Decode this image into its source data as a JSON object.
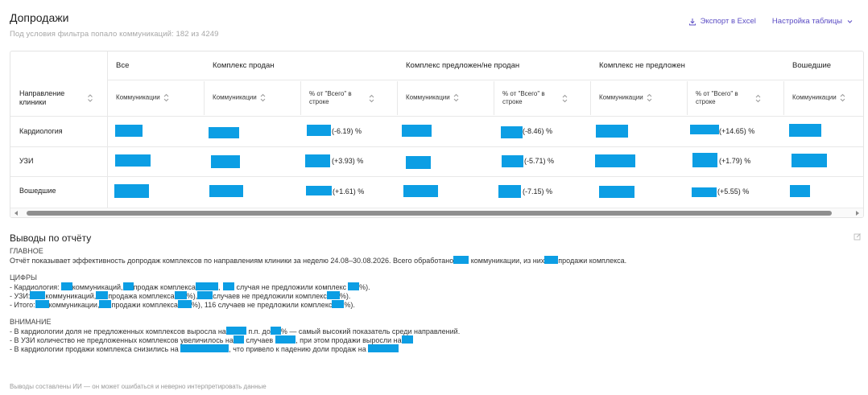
{
  "page": {
    "title": "Допродажи",
    "subtitle": "Под условия фильтра попало коммуникаций:  182 из 4249"
  },
  "toolbar": {
    "export_label": "Экспорт в Excel",
    "settings_label": "Настройка таблицы",
    "accent": "#5b4cc4"
  },
  "table": {
    "row_header": "Направление клиники",
    "groups": [
      "Все",
      "Комплекс продан",
      "Комплекс предложен/не продан",
      "Комплекс не предложен",
      "Вошедшие"
    ],
    "sub_comm": "Коммуникации",
    "sub_pct": "% от \"Всего\" в строке",
    "rows": [
      {
        "name": "Кардиология",
        "pct": [
          "(-6.19)  %",
          "(-8.46)  %",
          "(+14.65)  %"
        ]
      },
      {
        "name": "УЗИ",
        "pct": [
          "(+3.93)  %",
          "(-5.71)  %",
          "(+1.79)  %"
        ]
      },
      {
        "name": "Вошедшие",
        "pct": [
          "(+1.61)  %",
          "(-7.15)  %",
          "(+5.55)  %"
        ]
      }
    ],
    "redaction_color": "#0c9ee4"
  },
  "report": {
    "title": "Выводы по отчёту",
    "main_header": "ГЛАВНОЕ",
    "main_a": "Отчёт показывает эффективность допродаж комплексов по направлениям клиники за неделю 24.08–30.08.2026. Всего обработано",
    "main_b": "коммуникации, из них",
    "main_c": "продажи комплекса.",
    "figures_header": "ЦИФРЫ",
    "fig1_a": "- Кардиология:",
    "fig1_b": "коммуникаций,",
    "fig1_c": "продаж комплекса",
    "fig1_d": ",",
    "fig1_e": "случая не предложили комплекс",
    "fig1_f": "%).",
    "fig2_a": "- УЗИ:",
    "fig2_b": "коммуникаций,",
    "fig2_c": "продажа комплекса",
    "fig2_d": "%),",
    "fig2_e": "случаев не предложили комплекс",
    "fig2_f": "%).",
    "fig3_a": "- Итого:",
    "fig3_b": "коммуникации,",
    "fig3_c": "продажи комплекса",
    "fig3_d": "%), 116 случаев не предложили комплекс",
    "fig3_e": "%).",
    "warn_header": "ВНИМАНИЕ",
    "warn1_a": "- В кардиологии доля не предложенных комплексов выросла на",
    "warn1_b": "п.п. до",
    "warn1_c": "% — самый высокий показатель среди направлений.",
    "warn2_a": "- В УЗИ количество не предложенных комплексов увеличилось на",
    "warn2_b": "случаев",
    "warn2_c": ", при этом продажи выросли на",
    "warn3_a": "- В кардиологии продажи комплекса снизились на",
    "warn3_b": ", что привело к падению доли продаж на",
    "disclaimer": "Выводы составлены ИИ — он может ошибаться и неверно интерпретировать данные"
  }
}
